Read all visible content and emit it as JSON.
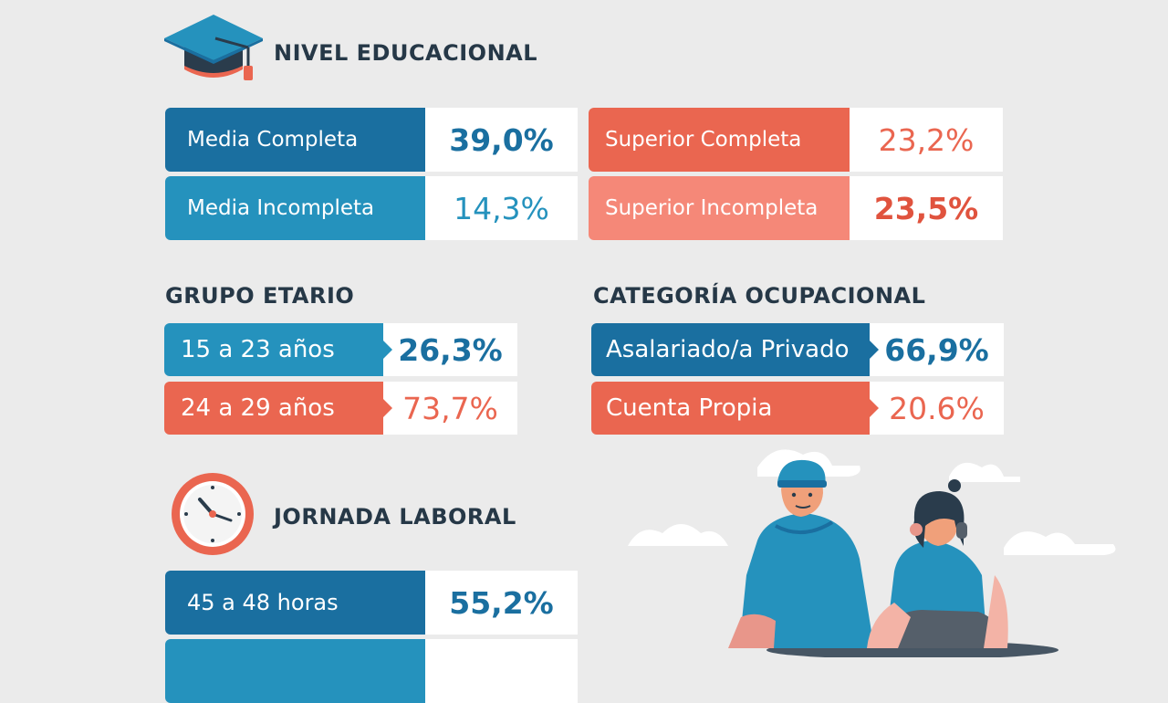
{
  "colors": {
    "navy": "#1a6fa0",
    "teal": "#2592bd",
    "coral": "#ea6650",
    "salmon": "#f58878",
    "heading": "#263847"
  },
  "nivel_educacional": {
    "title": "NIVEL EDUCACIONAL",
    "icon": "graduation-cap-icon",
    "items": [
      {
        "label": "Media Completa",
        "value": "39,0%"
      },
      {
        "label": "Media Incompleta",
        "value": "14,3%"
      },
      {
        "label": "Superior Completa",
        "value": "23,2%"
      },
      {
        "label": "Superior Incompleta",
        "value": "23,5%"
      }
    ]
  },
  "grupo_etario": {
    "title": "GRUPO ETARIO",
    "items": [
      {
        "label": "15 a 23 años",
        "value": "26,3%"
      },
      {
        "label": "24 a 29 años",
        "value": "73,7%"
      }
    ]
  },
  "categoria_ocupacional": {
    "title": "CATEGORÍA OCUPACIONAL",
    "items": [
      {
        "label": "Asalariado/a Privado",
        "value": "66,9%"
      },
      {
        "label": "Cuenta Propia",
        "value": "20.6%"
      }
    ]
  },
  "jornada_laboral": {
    "title": "JORNADA LABORAL",
    "icon": "clock-icon",
    "items": [
      {
        "label": "45 a 48 horas",
        "value": "55,2%"
      }
    ]
  }
}
